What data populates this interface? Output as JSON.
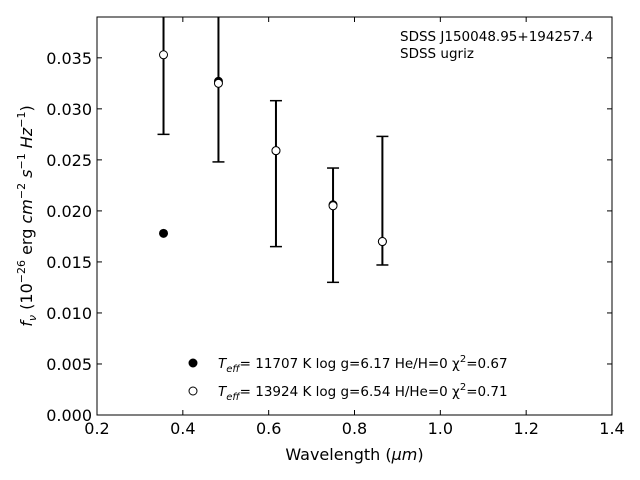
{
  "chart_data": {
    "type": "scatter",
    "xlabel": "Wavelength (",
    "xlabel_unit": "μm",
    "xlabel_close": ")",
    "ylabel_f": "f",
    "ylabel_nu": "ν",
    "ylabel_open": " (10",
    "ylabel_exp1": "−26",
    "ylabel_erg": " erg ",
    "ylabel_cm": "cm",
    "ylabel_exp2": "−2",
    "ylabel_s": " s",
    "ylabel_exp3": "−1",
    "ylabel_hz": " Hz",
    "ylabel_exp4": "−1",
    "ylabel_close": ")",
    "xlim": [
      0.2,
      1.4
    ],
    "ylim": [
      0.0,
      0.039
    ],
    "x_ticks": [
      0.2,
      0.4,
      0.6,
      0.8,
      1.0,
      1.2,
      1.4
    ],
    "x_tick_labels": [
      "0.2",
      "0.4",
      "0.6",
      "0.8",
      "1.0",
      "1.2",
      "1.4"
    ],
    "y_ticks": [
      0.0,
      0.005,
      0.01,
      0.015,
      0.02,
      0.025,
      0.03,
      0.035
    ],
    "y_tick_labels": [
      "0.000",
      "0.005",
      "0.010",
      "0.015",
      "0.020",
      "0.025",
      "0.030",
      "0.035"
    ],
    "annotation_line1": "SDSS J150048.95+194257.4",
    "annotation_line2": "SDSS ugriz",
    "observed": [
      {
        "x": 0.355,
        "low": 0.0275,
        "high": 0.039
      },
      {
        "x": 0.483,
        "low": 0.0248,
        "high": 0.039
      },
      {
        "x": 0.617,
        "low": 0.0165,
        "high": 0.0308
      },
      {
        "x": 0.75,
        "low": 0.013,
        "high": 0.0242
      },
      {
        "x": 0.865,
        "low": 0.0147,
        "high": 0.0273
      }
    ],
    "series": [
      {
        "marker": "filled",
        "legend_T": "T",
        "legend_eff": "eff",
        "legend_rest": "= 11707 K  log g=6.17  He/H=0  χ",
        "legend_sq": "2",
        "legend_chi": "=0.67",
        "x": [
          0.355,
          0.483,
          0.617,
          0.75,
          0.865
        ],
        "y": [
          0.0178,
          0.0327,
          0.0259,
          0.0206,
          0.017
        ]
      },
      {
        "marker": "open",
        "legend_T": "T",
        "legend_eff": "eff",
        "legend_rest": "= 13924 K  log g=6.54  H/He=0  χ",
        "legend_sq": "2",
        "legend_chi": "=0.71",
        "x": [
          0.355,
          0.483,
          0.617,
          0.75,
          0.865
        ],
        "y": [
          0.0353,
          0.0325,
          0.0259,
          0.0205,
          0.017
        ]
      }
    ],
    "colors": {
      "ink": "#000000",
      "background": "#ffffff"
    }
  }
}
